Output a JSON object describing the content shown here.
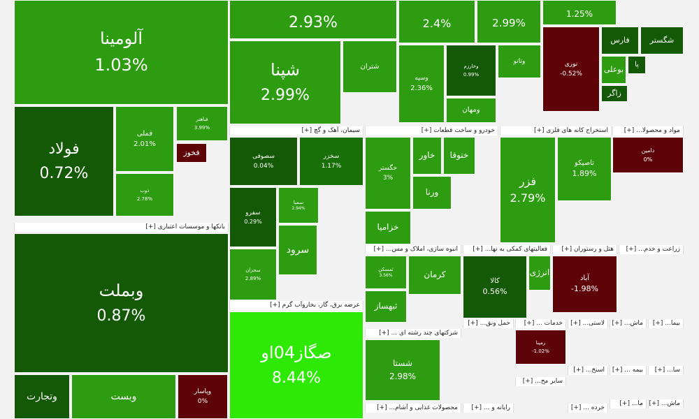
{
  "chart_data": {
    "type": "treemap",
    "colors": {
      "strong_up": "#2ee806",
      "up": "#2e9c10",
      "mild_up": "#1a7008",
      "flat": "#145a06",
      "down": "#5e0409",
      "strong_down": "#9c0a0f"
    },
    "groups": [
      {
        "header": "بانکها و موسسات اعتباری [+]"
      },
      {
        "header": "سیمان، آهک و گچ [+]"
      },
      {
        "header": "خودرو و ساخت قطعات [+]"
      },
      {
        "header": "استخراج کانه های فلزی [+]"
      },
      {
        "header": "مواد و محصولا... [+]"
      },
      {
        "header": "عرضه برق، گاز، بخاروآب گرم [+]"
      },
      {
        "header": "انبوه سازی، املاک و مس... [+]"
      },
      {
        "header": "فعالیتهای کمکی به نها... [+]"
      },
      {
        "header": "هتل و رستوران [+]"
      },
      {
        "header": "زراعت و خدم... [+]"
      },
      {
        "header": "شرکتهای چند رشته ای ... [+]"
      },
      {
        "header": "حمل ونق... [+]"
      },
      {
        "header": "خدمات ... [+]"
      },
      {
        "header": "لاستی... [+]"
      },
      {
        "header": "ماش... [+]"
      },
      {
        "header": "بیما... [+]"
      },
      {
        "header": "سایر مح... [+]"
      },
      {
        "header": "اسنخ... [+]"
      },
      {
        "header": "بیمه ... [+]"
      },
      {
        "header": "سا... [+]"
      },
      {
        "header": "محصولات غذایی و آشام... [+]"
      },
      {
        "header": "رایانه و ... [+]"
      },
      {
        "header": "خرده ... [+]"
      },
      {
        "header": "ما... [+]"
      },
      {
        "header": "ماش... [+]"
      }
    ],
    "tiles": [
      {
        "name": "آلومینا",
        "change": "1.03%",
        "value": 1.03,
        "color": "up"
      },
      {
        "name": "",
        "change": "2.93%",
        "value": 2.93,
        "color": "up"
      },
      {
        "name": "",
        "change": "2.4%",
        "value": 2.4,
        "color": "up"
      },
      {
        "name": "",
        "change": "2.99%",
        "value": 2.99,
        "color": "up"
      },
      {
        "name": "",
        "change": "1.25%",
        "value": 1.25,
        "color": "up"
      },
      {
        "name": "شپنا",
        "change": "2.99%",
        "value": 2.99,
        "color": "up"
      },
      {
        "name": "شتران",
        "change": "",
        "color": "up"
      },
      {
        "name": "وسپه",
        "change": "2.36%",
        "value": 2.36,
        "color": "up"
      },
      {
        "name": "وخارزم",
        "change": "0.99%",
        "value": 0.99,
        "color": "flat"
      },
      {
        "name": "وتاتو",
        "change": "",
        "color": "up"
      },
      {
        "name": "ومهان",
        "change": "",
        "color": "up"
      },
      {
        "name": "نوری",
        "change": "-0.52%",
        "value": -0.52,
        "color": "down"
      },
      {
        "name": "فارس",
        "change": "",
        "color": "flat"
      },
      {
        "name": "شگستر",
        "change": "",
        "color": "flat"
      },
      {
        "name": "بوعلی",
        "change": "",
        "color": "up"
      },
      {
        "name": "پا",
        "change": "",
        "color": "flat"
      },
      {
        "name": "زاگر",
        "change": "",
        "color": "flat"
      },
      {
        "name": "فولاد",
        "change": "0.72%",
        "value": 0.72,
        "color": "flat"
      },
      {
        "name": "فملی",
        "change": "2.01%",
        "value": 2.01,
        "color": "up"
      },
      {
        "name": "فخوز",
        "change": "",
        "color": "down"
      },
      {
        "name": "فباهنر",
        "change": "3.99%",
        "value": 3.99,
        "color": "up"
      },
      {
        "name": "ذوب",
        "change": "2.78%",
        "value": 2.78,
        "color": "up"
      },
      {
        "name": "وبملت",
        "change": "0.87%",
        "value": 0.87,
        "color": "flat"
      },
      {
        "name": "وتجارت",
        "change": "",
        "color": "flat"
      },
      {
        "name": "وبست",
        "change": "",
        "color": "up"
      },
      {
        "name": "وپاسار",
        "change": "0%",
        "value": 0,
        "color": "down"
      },
      {
        "name": "وبصادر",
        "change": "-0.41%",
        "value": -0.41,
        "color": "down"
      },
      {
        "name": "صگاز04او",
        "change": "8.44%",
        "value": 8.44,
        "color": "strong_up"
      },
      {
        "name": "سصوفی",
        "change": "0.04%",
        "value": 0.04,
        "color": "flat"
      },
      {
        "name": "سخزر",
        "change": "1.17%",
        "value": 1.17,
        "color": "mild_up"
      },
      {
        "name": "سفرو",
        "change": "0.29%",
        "value": 0.29,
        "color": "flat"
      },
      {
        "name": "سمیا",
        "change": "2.94%",
        "value": 2.94,
        "color": "up"
      },
      {
        "name": "سرود",
        "change": "",
        "color": "up"
      },
      {
        "name": "سجزان",
        "change": "2.89%",
        "value": 2.89,
        "color": "up"
      },
      {
        "name": "خگستر",
        "change": "3%",
        "value": 3,
        "color": "up"
      },
      {
        "name": "خاور",
        "change": "",
        "color": "up"
      },
      {
        "name": "ختوقا",
        "change": "",
        "color": "up"
      },
      {
        "name": "ورنا",
        "change": "",
        "color": "up"
      },
      {
        "name": "خزامیا",
        "change": "",
        "color": "up"
      },
      {
        "name": "فزر",
        "change": "2.79%",
        "value": 2.79,
        "color": "up"
      },
      {
        "name": "تاصیکو",
        "change": "1.89%",
        "value": 1.89,
        "color": "up"
      },
      {
        "name": "دامین",
        "change": "0%",
        "value": 0,
        "color": "down"
      },
      {
        "name": "ثمسکن",
        "change": "3.56%",
        "value": 3.56,
        "color": "up"
      },
      {
        "name": "کرمان",
        "change": "",
        "color": "up"
      },
      {
        "name": "ثبهساز",
        "change": "",
        "color": "up"
      },
      {
        "name": "کالا",
        "change": "0.56%",
        "value": 0.56,
        "color": "flat"
      },
      {
        "name": "انرژی",
        "change": "",
        "color": "up"
      },
      {
        "name": "آباد",
        "change": "-1.98%",
        "value": -1.98,
        "color": "down"
      },
      {
        "name": "شستا",
        "change": "2.98%",
        "value": 2.98,
        "color": "up"
      },
      {
        "name": "رمپنا",
        "change": "-1.02%",
        "value": -1.02,
        "color": "down"
      }
    ]
  }
}
